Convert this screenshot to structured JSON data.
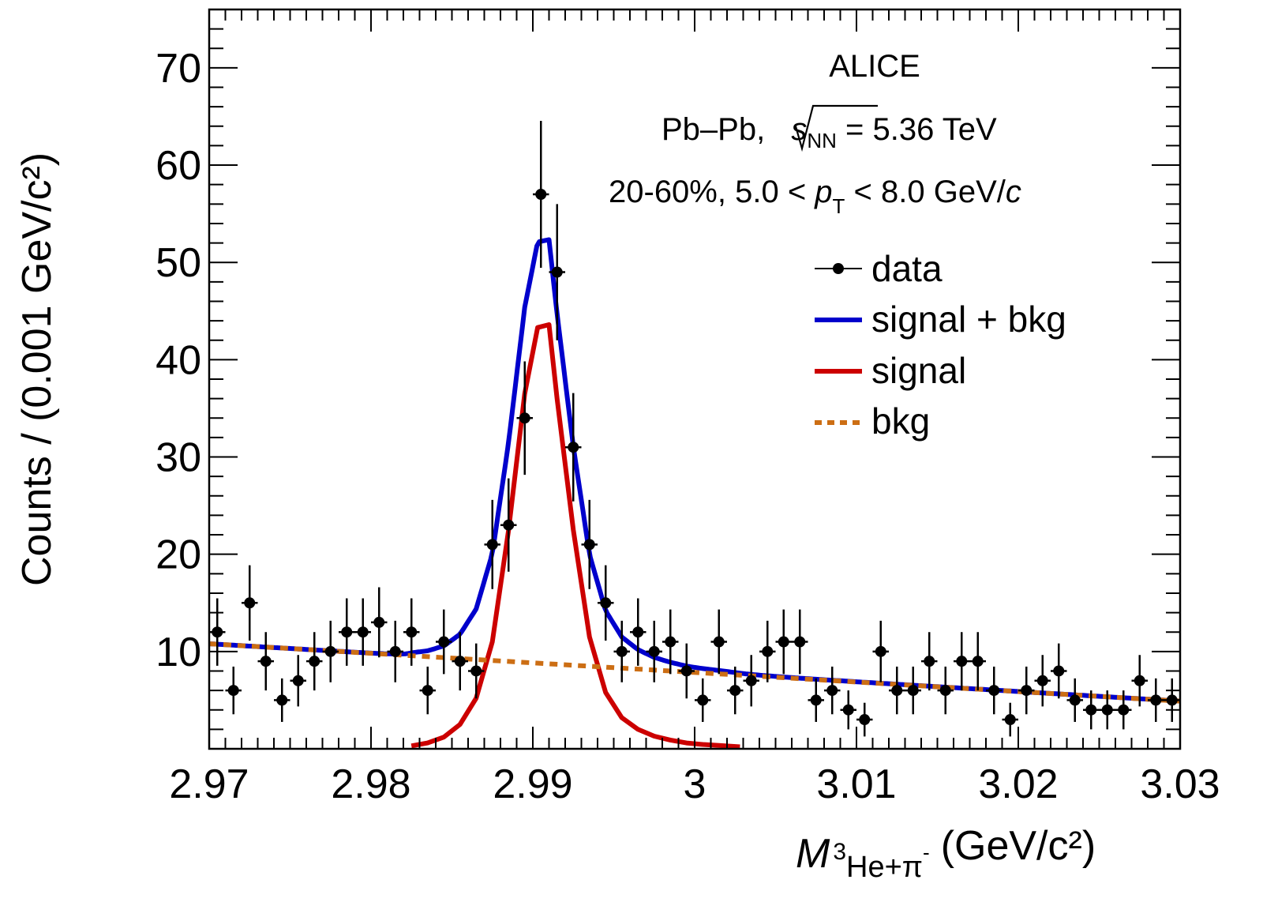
{
  "chart_data": {
    "type": "scatter",
    "title": "",
    "xlabel": {
      "main": "M",
      "subscript_sup": "3",
      "subscript": "He+π",
      "subscript_sup2": "-",
      "units": "(GeV/c²)"
    },
    "ylabel": "Counts / (0.001 GeV/c²)",
    "xlim": [
      2.97,
      3.03
    ],
    "ylim": [
      0,
      76
    ],
    "x_ticks": [
      {
        "value": 2.97,
        "label": "2.97"
      },
      {
        "value": 2.98,
        "label": "2.98"
      },
      {
        "value": 2.99,
        "label": "2.99"
      },
      {
        "value": 3.0,
        "label": "3"
      },
      {
        "value": 3.01,
        "label": "3.01"
      },
      {
        "value": 3.02,
        "label": "3.02"
      },
      {
        "value": 3.03,
        "label": "3.03"
      }
    ],
    "y_ticks": [
      {
        "value": 10,
        "label": "10"
      },
      {
        "value": 20,
        "label": "20"
      },
      {
        "value": 30,
        "label": "30"
      },
      {
        "value": 40,
        "label": "40"
      },
      {
        "value": 50,
        "label": "50"
      },
      {
        "value": 60,
        "label": "60"
      },
      {
        "value": 70,
        "label": "70"
      }
    ],
    "grid": false,
    "legend_position": "top-right",
    "annotations": {
      "experiment": "ALICE",
      "system_prefix": "Pb–Pb, ",
      "sqrt_s_symbol": "s",
      "sqrt_s_sub": "NN",
      "system_suffix": " = 5.36 TeV",
      "cuts_prefix": "20-60%, 5.0 < ",
      "pt_symbol": "p",
      "pt_sub": "T",
      "cuts_suffix": " < 8.0 GeV/",
      "cuts_unit_italic": "c"
    },
    "series": [
      {
        "name": "data",
        "kind": "points_with_errors",
        "color": "#000000",
        "bin_width": 0.001,
        "x": [
          2.9705,
          2.9715,
          2.9725,
          2.9735,
          2.9745,
          2.9755,
          2.9765,
          2.9775,
          2.9785,
          2.9795,
          2.9805,
          2.9815,
          2.9825,
          2.9835,
          2.9845,
          2.9855,
          2.9865,
          2.9875,
          2.9885,
          2.9895,
          2.9905,
          2.9915,
          2.9925,
          2.9935,
          2.9945,
          2.9955,
          2.9965,
          2.9975,
          2.9985,
          2.9995,
          3.0005,
          3.0015,
          3.0025,
          3.0035,
          3.0045,
          3.0055,
          3.0065,
          3.0075,
          3.0085,
          3.0095,
          3.0105,
          3.0115,
          3.0125,
          3.0135,
          3.0145,
          3.0155,
          3.0165,
          3.0175,
          3.0185,
          3.0195,
          3.0205,
          3.0215,
          3.0225,
          3.0235,
          3.0245,
          3.0255,
          3.0265,
          3.0275,
          3.0285,
          3.0295
        ],
        "y": [
          12,
          6,
          15,
          9,
          5,
          7,
          9,
          10,
          12,
          12,
          13,
          10,
          12,
          6,
          11,
          9,
          8,
          21,
          23,
          34,
          57,
          49,
          31,
          21,
          15,
          10,
          12,
          10,
          11,
          8,
          5,
          11,
          6,
          7,
          10,
          11,
          11,
          5,
          6,
          4,
          3,
          10,
          6,
          6,
          9,
          6,
          9,
          9,
          6,
          3,
          6,
          7,
          8,
          5,
          4,
          4,
          4,
          7,
          5,
          5
        ],
        "error": "sqrt"
      },
      {
        "name": "signal + bkg",
        "kind": "line",
        "color": "#0000cc"
      },
      {
        "name": "signal",
        "kind": "line",
        "color": "#cc0000",
        "x": [
          2.9825,
          2.9835,
          2.9845,
          2.9855,
          2.9865,
          2.9875,
          2.9885,
          2.9895,
          2.9903,
          2.991,
          2.9915,
          2.9925,
          2.9935,
          2.9945,
          2.9955,
          2.9965,
          2.9975,
          2.9985,
          2.9995,
          3.0005,
          3.0015,
          3.0028
        ],
        "y": [
          0.3,
          0.6,
          1.2,
          2.5,
          5.2,
          11.0,
          22.5,
          36.5,
          43.3,
          43.6,
          36.0,
          22.5,
          11.5,
          5.8,
          3.2,
          2.0,
          1.3,
          0.9,
          0.6,
          0.45,
          0.35,
          0.2
        ]
      },
      {
        "name": "bkg",
        "kind": "dashed_line",
        "color": "#cc6e14",
        "x": [
          2.97,
          3.03
        ],
        "y": [
          10.8,
          4.9
        ]
      }
    ],
    "legend": [
      {
        "label": "data",
        "key": "data"
      },
      {
        "label": "signal + bkg",
        "key": "signal + bkg"
      },
      {
        "label": "signal",
        "key": "signal"
      },
      {
        "label": "bkg",
        "key": "bkg"
      }
    ]
  }
}
